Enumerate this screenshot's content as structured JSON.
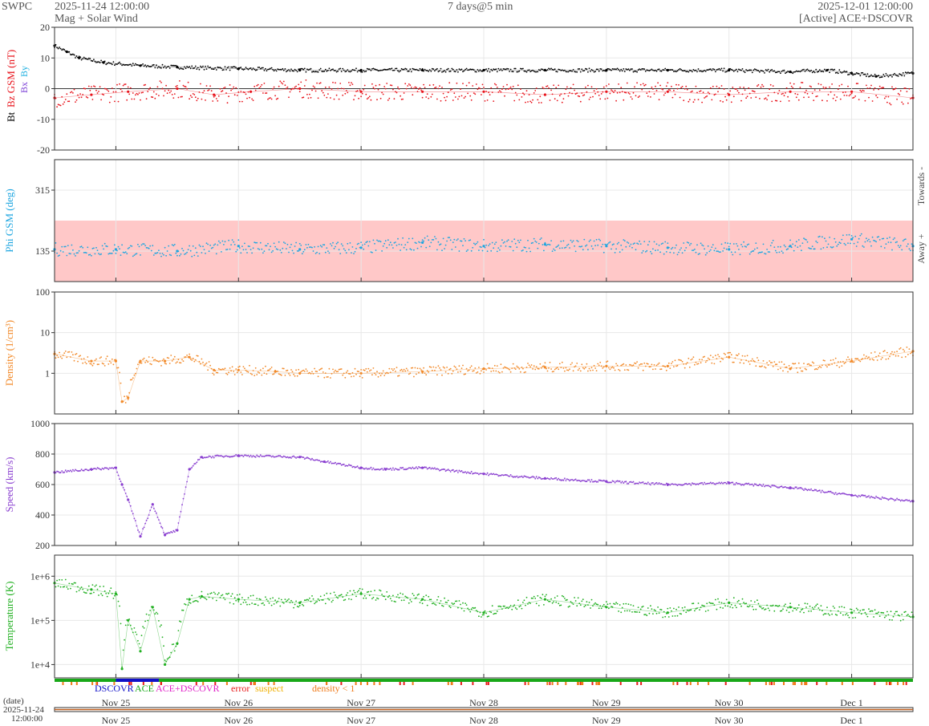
{
  "header": {
    "agency": "SWPC",
    "start": "2025-11-24 12:00:00",
    "span": "7 days@5 min",
    "end": "2025-12-01 12:00:00",
    "subtitle": "Mag + Solar Wind",
    "source": "[Active] ACE+DSCOVR"
  },
  "colors": {
    "bt": "#000000",
    "bz": "#e8141c",
    "bx": "#7b3fd6",
    "by": "#1fb0e0",
    "phi": "#1fa6e0",
    "phi_band": "#ffc8c8",
    "density": "#f28a2a",
    "speed": "#8a3fd0",
    "temperature": "#22b022",
    "grid": "#e8e8e8",
    "dscovr": "#1010c8",
    "ace": "#18a818",
    "ace_dscovr": "#e020c8",
    "error": "#e81c1c",
    "suspect": "#f0b000",
    "density_flag": "#f07a1a"
  },
  "chart_data": [
    {
      "type": "line",
      "panel": "mag",
      "ylabel_parts": [
        "Bt",
        "Bz GSM (nT)",
        "Bx",
        "By"
      ],
      "ylim": [
        -20,
        20
      ],
      "yticks": [
        -20,
        -10,
        0,
        10,
        20
      ],
      "grid": true,
      "series": [
        {
          "name": "Bt",
          "x": [
            0,
            0.1,
            0.2,
            0.4,
            0.7,
            1,
            1.5,
            2,
            2.5,
            3,
            3.5,
            4,
            4.5,
            5,
            5.5,
            6,
            6.3,
            6.5,
            6.7,
            7
          ],
          "values": [
            14,
            12,
            10,
            8.5,
            7.5,
            7,
            6.5,
            6,
            6,
            6,
            6,
            6,
            6,
            6,
            6,
            5.5,
            6,
            5,
            4,
            5
          ]
        },
        {
          "name": "Bz",
          "x": [
            0,
            0.3,
            0.6,
            1,
            1.3,
            1.6,
            2,
            2.5,
            3,
            3.5,
            4,
            4.5,
            5,
            5.5,
            6,
            6.5,
            7
          ],
          "values": [
            -3,
            -2,
            -1,
            0,
            -2,
            -1,
            0,
            -1,
            -1,
            -1,
            -2,
            -1,
            -1,
            -2,
            -1,
            -1,
            -3
          ]
        }
      ]
    },
    {
      "type": "scatter",
      "panel": "phi",
      "ylabel": "Phi GSM (deg)",
      "right_labels": [
        "Towards -",
        "Away +"
      ],
      "yticks": [
        135,
        315
      ],
      "ylim": [
        45,
        405
      ],
      "band": [
        45,
        225
      ],
      "series": [
        {
          "name": "Phi",
          "x": [
            0,
            0.5,
            1,
            1.5,
            2,
            2.5,
            3,
            3.5,
            4,
            4.5,
            5,
            5.5,
            6,
            6.5,
            7
          ],
          "values": [
            140,
            140,
            135,
            150,
            140,
            145,
            160,
            150,
            155,
            150,
            145,
            140,
            150,
            170,
            150
          ]
        }
      ]
    },
    {
      "type": "line",
      "panel": "density",
      "ylabel": "Density (1/cm³)",
      "yscale": "log",
      "ylim": [
        0.1,
        100
      ],
      "yticks": [
        1,
        10,
        100
      ],
      "grid": true,
      "series": [
        {
          "name": "Density",
          "x": [
            0,
            0.3,
            0.5,
            0.55,
            0.6,
            0.7,
            0.9,
            1.1,
            1.3,
            1.5,
            1.8,
            2,
            2.5,
            3,
            3.5,
            4,
            4.5,
            5,
            5.5,
            6,
            6.5,
            7
          ],
          "values": [
            3,
            2,
            2,
            0.2,
            0.25,
            2,
            2,
            2.5,
            1.2,
            1.2,
            1.1,
            1,
            1,
            1.1,
            1.3,
            1.4,
            1.5,
            1.5,
            2.5,
            1.3,
            2,
            3.5
          ]
        }
      ]
    },
    {
      "type": "line",
      "panel": "speed",
      "ylabel": "Speed (km/s)",
      "ylim": [
        200,
        1000
      ],
      "yticks": [
        200,
        400,
        600,
        800,
        1000
      ],
      "grid": true,
      "series": [
        {
          "name": "Speed",
          "x": [
            0,
            0.3,
            0.5,
            0.55,
            0.6,
            0.7,
            0.8,
            0.9,
            1,
            1.1,
            1.2,
            1.5,
            2,
            2.2,
            2.5,
            2.7,
            3,
            3.5,
            4,
            4.5,
            5,
            5.5,
            6,
            6.5,
            7
          ],
          "values": [
            680,
            700,
            710,
            600,
            500,
            260,
            470,
            270,
            300,
            700,
            780,
            790,
            780,
            750,
            710,
            700,
            710,
            670,
            640,
            620,
            600,
            610,
            580,
            530,
            490
          ]
        }
      ]
    },
    {
      "type": "line",
      "panel": "temperature",
      "ylabel": "Temperature (K)",
      "yscale": "log",
      "ylim": [
        5000,
        3000000
      ],
      "yticks": [
        "1e+4",
        "1e+5",
        "1e+6"
      ],
      "grid": true,
      "series": [
        {
          "name": "Temperature",
          "x": [
            0,
            0.3,
            0.5,
            0.55,
            0.6,
            0.7,
            0.8,
            0.9,
            1,
            1.1,
            1.2,
            1.5,
            2,
            2.5,
            3,
            3.5,
            4,
            4.5,
            5,
            5.5,
            6,
            6.5,
            7
          ],
          "values": [
            700000,
            500000,
            400000,
            8000,
            100000,
            20000,
            200000,
            10000,
            30000,
            300000,
            350000,
            300000,
            250000,
            400000,
            300000,
            150000,
            300000,
            200000,
            150000,
            250000,
            200000,
            150000,
            120000
          ]
        }
      ]
    }
  ],
  "legend": {
    "dscovr": "DSCOVR",
    "ace": "ACE",
    "ace_dscovr": "ACE+DSCOVR",
    "error": "error",
    "suspect": "suspect",
    "density": "density < 1"
  },
  "xaxis": {
    "ticks": [
      "Nov 25",
      "Nov 26",
      "Nov 27",
      "Nov 28",
      "Nov 29",
      "Nov 30",
      "Dec 1"
    ],
    "date_label": "(date)",
    "date_value": "2025-11-24",
    "time_value": "12:00:00"
  }
}
